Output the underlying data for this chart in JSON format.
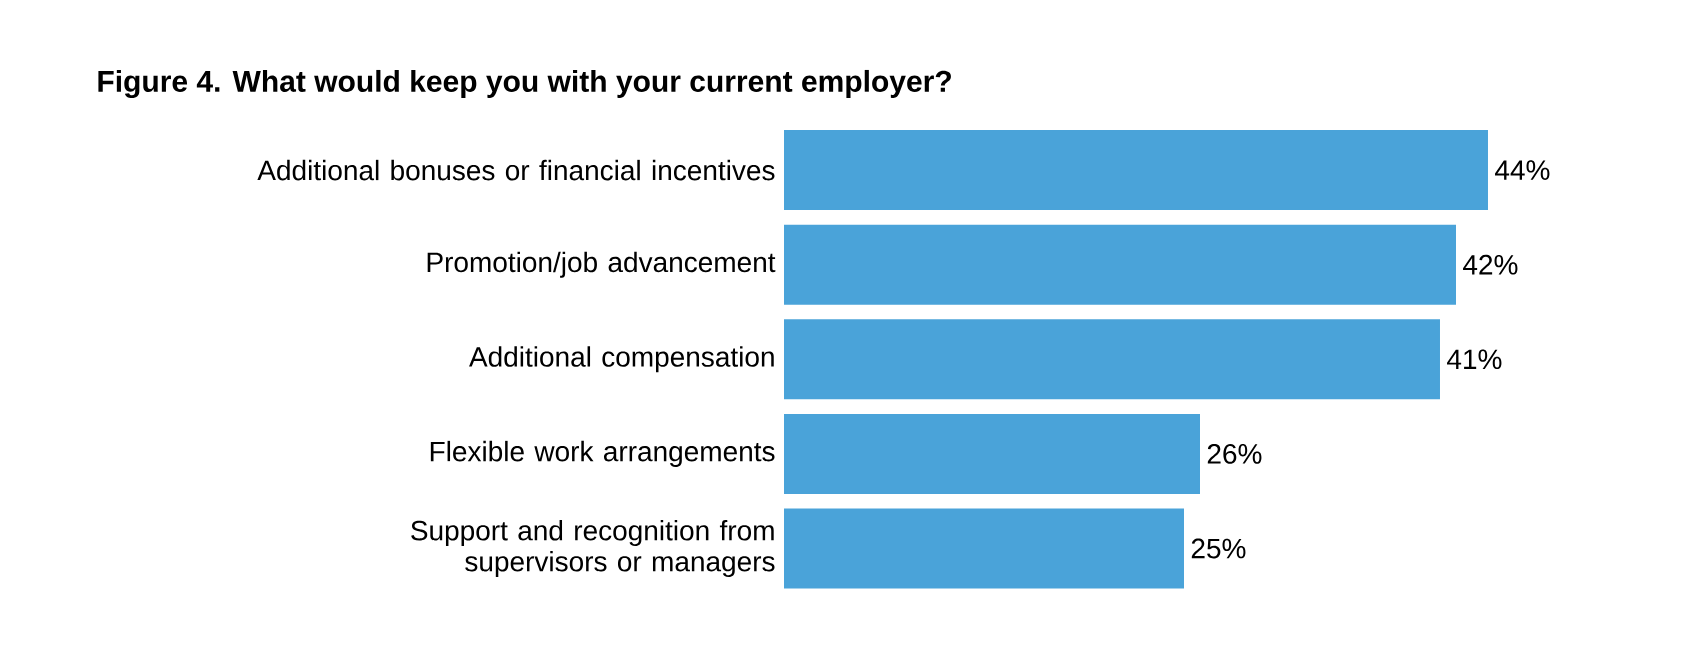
{
  "chart_data": {
    "type": "bar",
    "orientation": "horizontal",
    "title": "Figure 4. What would keep you with your current employer?",
    "categories": [
      "Additional bonuses or financial incentives",
      "Promotion/job advancement",
      "Additional compensation",
      "Flexible work arrangements",
      "Support and recognition from supervisors or managers"
    ],
    "values": [
      44,
      42,
      41,
      26,
      25
    ],
    "value_labels": [
      "44%",
      "42%",
      "41%",
      "26%",
      "25%"
    ],
    "color": "#4aa3d9"
  }
}
